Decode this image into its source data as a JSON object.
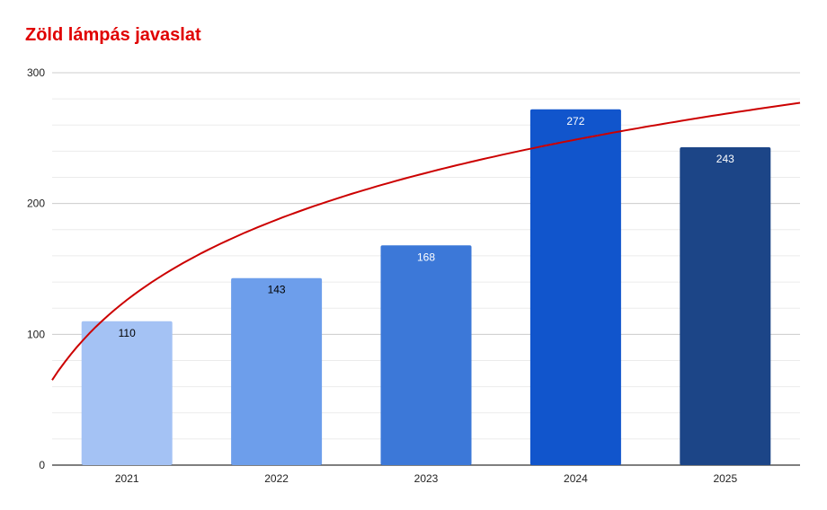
{
  "chart_data": {
    "type": "bar",
    "title": "Zöld lámpás javaslat",
    "title_color": "#e00000",
    "categories": [
      "2021",
      "2022",
      "2023",
      "2024",
      "2025"
    ],
    "values": [
      110,
      143,
      168,
      272,
      243
    ],
    "bar_colors": [
      "#a4c2f4",
      "#6d9eeb",
      "#3c78d8",
      "#1155cc",
      "#1c4587"
    ],
    "label_colors": [
      "#000000",
      "#000000",
      "#ffffff",
      "#ffffff",
      "#ffffff"
    ],
    "ylim": [
      0,
      300
    ],
    "yticks": [
      0,
      100,
      200,
      300
    ],
    "minor_grid_step": 20,
    "grid": true,
    "legend": "none",
    "trendline": {
      "type": "logarithmic",
      "color": "#cc0000",
      "start": 65,
      "end": 277
    }
  }
}
